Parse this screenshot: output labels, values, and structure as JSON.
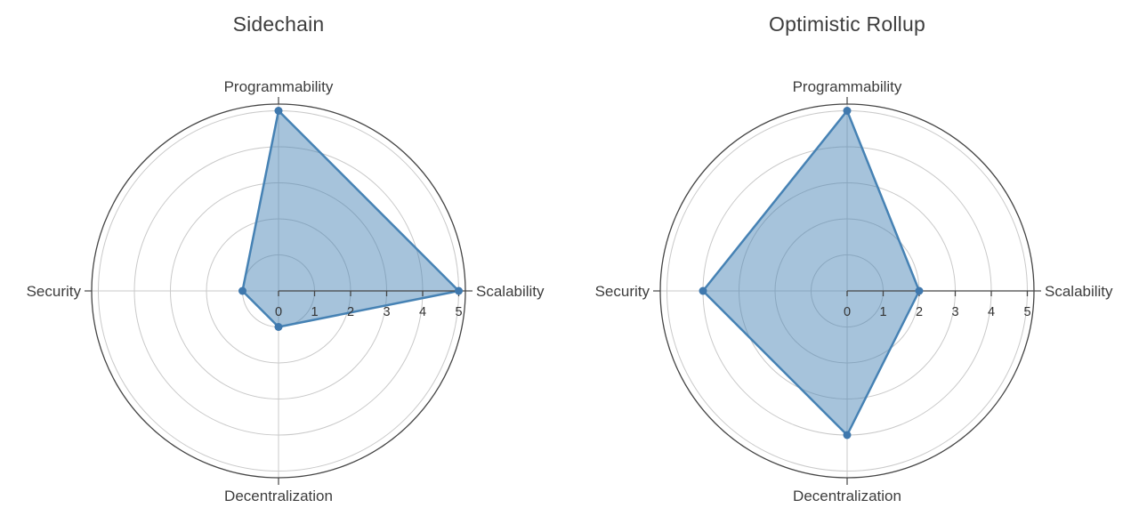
{
  "page": {
    "background_color": "#ffffff"
  },
  "chart_data": [
    {
      "type": "radar",
      "title": "Sidechain",
      "categories": [
        "Programmability",
        "Scalability",
        "Decentralization",
        "Security"
      ],
      "values": [
        5,
        5,
        1,
        1
      ],
      "radial_ticks": [
        0,
        1,
        2,
        3,
        4,
        5
      ],
      "radial_range": [
        0,
        5
      ],
      "angles_deg": [
        90,
        0,
        270,
        180
      ],
      "grid": true,
      "legend": false
    },
    {
      "type": "radar",
      "title": "Optimistic Rollup",
      "categories": [
        "Programmability",
        "Scalability",
        "Decentralization",
        "Security"
      ],
      "values": [
        5,
        2,
        4,
        4
      ],
      "radial_ticks": [
        0,
        1,
        2,
        3,
        4,
        5
      ],
      "radial_range": [
        0,
        5
      ],
      "angles_deg": [
        90,
        0,
        270,
        180
      ],
      "grid": true,
      "legend": false
    }
  ],
  "style": {
    "series_line_color": "#4682b4",
    "series_fill_color": "rgba(70,130,180,0.48)",
    "marker_color": "#3f78ad",
    "grid_ring_color": "#c9c9c9",
    "spoke_color": "#c9c9c9",
    "outer_border_color": "#454545",
    "radial_axis_color": "#454545",
    "tick_label_color": "#333333",
    "category_label_color": "#3d3d3d",
    "title_color": "#3d3d3d"
  }
}
